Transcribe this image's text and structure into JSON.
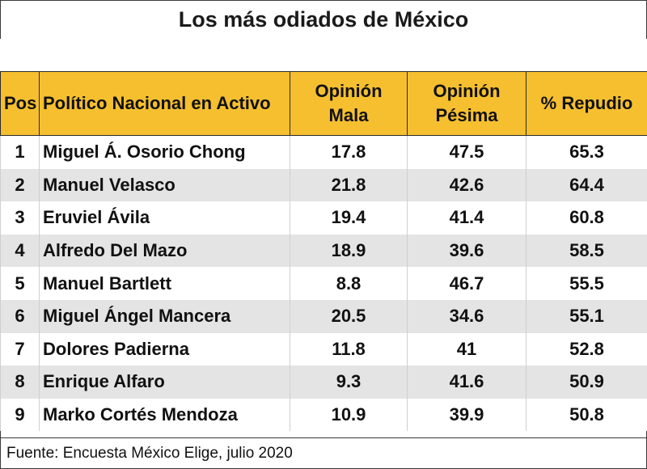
{
  "title": "Los más odiados de México",
  "headers": {
    "pos": "Pos",
    "politico": "Político Nacional en Activo",
    "mala": "Opinión Mala",
    "pesima": "Opinión Pésima",
    "repudio": "% Repudio"
  },
  "header_color": "#f5bf2f",
  "rows": [
    {
      "pos": "1",
      "name": "Miguel Á. Osorio Chong",
      "mala": "17.8",
      "pesima": "47.5",
      "repudio": "65.3"
    },
    {
      "pos": "2",
      "name": "Manuel Velasco",
      "mala": "21.8",
      "pesima": "42.6",
      "repudio": "64.4"
    },
    {
      "pos": "3",
      "name": "Eruviel Ávila",
      "mala": "19.4",
      "pesima": "41.4",
      "repudio": "60.8"
    },
    {
      "pos": "4",
      "name": "Alfredo Del Mazo",
      "mala": "18.9",
      "pesima": "39.6",
      "repudio": "58.5"
    },
    {
      "pos": "5",
      "name": "Manuel Bartlett",
      "mala": "8.8",
      "pesima": "46.7",
      "repudio": "55.5"
    },
    {
      "pos": "6",
      "name": "Miguel Ángel Mancera",
      "mala": "20.5",
      "pesima": "34.6",
      "repudio": "55.1"
    },
    {
      "pos": "7",
      "name": "Dolores Padierna",
      "mala": "11.8",
      "pesima": "41",
      "repudio": "52.8"
    },
    {
      "pos": "8",
      "name": "Enrique Alfaro",
      "mala": "9.3",
      "pesima": "41.6",
      "repudio": "50.9"
    },
    {
      "pos": "9",
      "name": "Marko Cortés Mendoza",
      "mala": "10.9",
      "pesima": "39.9",
      "repudio": "50.8"
    }
  ],
  "source": "Fuente: Encuesta México Elige, julio 2020"
}
